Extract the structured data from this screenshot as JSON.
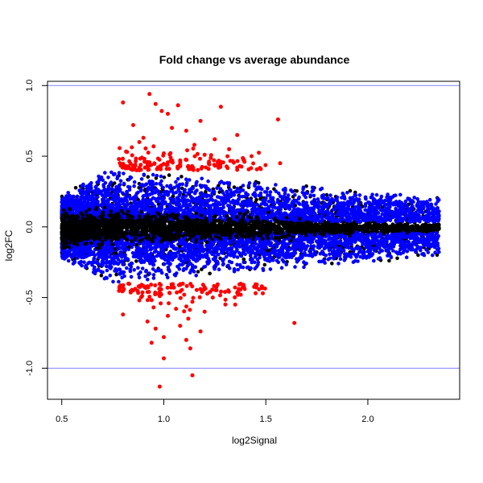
{
  "chart_data": {
    "type": "scatter",
    "title": "Fold change vs average abundance",
    "xlabel": "log2Signal",
    "ylabel": "log2FC",
    "xlim": [
      0.43,
      2.45
    ],
    "ylim": [
      -1.22,
      1.03
    ],
    "x_ticks": [
      {
        "value": 0.5,
        "label": "0.5"
      },
      {
        "value": 1.0,
        "label": "1.0"
      },
      {
        "value": 1.5,
        "label": "1.5"
      },
      {
        "value": 2.0,
        "label": "2.0"
      }
    ],
    "y_ticks": [
      {
        "value": 1.0,
        "label": "1.0"
      },
      {
        "value": 0.5,
        "label": "0.5"
      },
      {
        "value": 0.0,
        "label": "0.0"
      },
      {
        "value": -0.5,
        "label": "-0.5"
      },
      {
        "value": -1.0,
        "label": "-1.0"
      }
    ],
    "reference_lines": [
      1.0,
      -1.0
    ],
    "grid": false,
    "legend": "none",
    "colors": {
      "not_significant": "#000000",
      "significant_small": "#0000ff",
      "significant_large": "#ff0000",
      "reference_line": "#8080ff"
    },
    "series": [
      {
        "color": "#ff0000",
        "points": [
          [
            0.93,
            0.94
          ],
          [
            0.8,
            0.88
          ],
          [
            0.96,
            0.87
          ],
          [
            1.07,
            0.86
          ],
          [
            1.28,
            0.85
          ],
          [
            0.99,
            0.82
          ],
          [
            1.02,
            0.8
          ],
          [
            1.56,
            0.76
          ],
          [
            1.18,
            0.75
          ],
          [
            0.85,
            0.72
          ],
          [
            1.04,
            0.7
          ],
          [
            1.11,
            0.68
          ],
          [
            1.36,
            0.65
          ],
          [
            0.9,
            0.63
          ],
          [
            1.25,
            0.62
          ],
          [
            0.88,
            0.6
          ],
          [
            1.15,
            0.58
          ],
          [
            0.95,
            0.57
          ],
          [
            1.32,
            0.55
          ],
          [
            0.82,
            0.53
          ],
          [
            1.0,
            0.52
          ],
          [
            1.2,
            0.51
          ],
          [
            1.43,
            0.5
          ],
          [
            0.78,
            0.48
          ],
          [
            1.08,
            0.47
          ],
          [
            1.28,
            0.46
          ],
          [
            1.57,
            0.45
          ],
          [
            0.86,
            0.44
          ],
          [
            1.12,
            0.43
          ],
          [
            1.36,
            0.42
          ],
          [
            0.97,
            0.41
          ],
          [
            1.22,
            0.41
          ],
          [
            0.92,
            -0.42
          ],
          [
            1.05,
            -0.43
          ],
          [
            1.18,
            -0.44
          ],
          [
            0.85,
            -0.45
          ],
          [
            1.3,
            -0.46
          ],
          [
            1.45,
            -0.47
          ],
          [
            1.1,
            -0.48
          ],
          [
            0.98,
            -0.49
          ],
          [
            1.24,
            -0.5
          ],
          [
            0.88,
            -0.52
          ],
          [
            1.14,
            -0.53
          ],
          [
            1.35,
            -0.55
          ],
          [
            0.95,
            -0.57
          ],
          [
            1.06,
            -0.58
          ],
          [
            1.2,
            -0.6
          ],
          [
            0.8,
            -0.62
          ],
          [
            1.02,
            -0.63
          ],
          [
            1.12,
            -0.65
          ],
          [
            0.92,
            -0.67
          ],
          [
            1.64,
            -0.68
          ],
          [
            1.08,
            -0.7
          ],
          [
            0.96,
            -0.72
          ],
          [
            1.18,
            -0.74
          ],
          [
            1.0,
            -0.78
          ],
          [
            1.11,
            -0.8
          ],
          [
            0.94,
            -0.82
          ],
          [
            1.13,
            -0.86
          ],
          [
            1.0,
            -0.93
          ],
          [
            1.14,
            -1.05
          ],
          [
            0.98,
            -1.13
          ]
        ]
      }
    ]
  }
}
